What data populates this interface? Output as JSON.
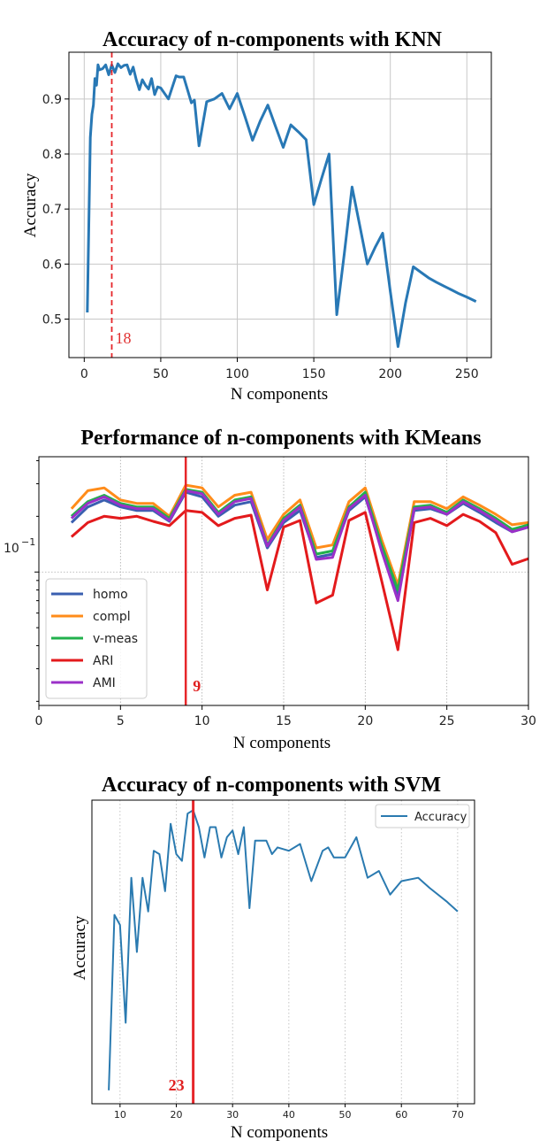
{
  "colors": {
    "knn_line": "#2878b5",
    "svm_line": "#2a7ab0",
    "marker_red": "#e6262a",
    "homo": "#3a5fb0",
    "compl": "#ff8c1a",
    "v-meas": "#22b14c",
    "ARI": "#e31a1c",
    "AMI": "#9b30c8"
  },
  "chart_data": [
    {
      "type": "line",
      "title": "Accuracy of n-components with KNN",
      "xlabel": "N components",
      "ylabel": "Accuracy",
      "xlim": [
        -10,
        266
      ],
      "ylim": [
        0.43,
        0.985
      ],
      "xticks": [
        0,
        50,
        100,
        150,
        200,
        250
      ],
      "yticks": [
        0.5,
        0.6,
        0.7,
        0.8,
        0.9
      ],
      "ytick_labels": [
        "0.5",
        "0.6",
        "0.7",
        "0.8",
        "0.9"
      ],
      "grid": true,
      "marker_x": 18,
      "marker_label": "18",
      "series": [
        {
          "x": [
            2,
            4,
            5,
            6,
            7,
            8,
            9,
            10,
            12,
            14,
            16,
            18,
            20,
            22,
            24,
            26,
            28,
            30,
            32,
            34,
            36,
            38,
            40,
            42,
            44,
            46,
            48,
            50,
            55,
            60,
            62,
            65,
            70,
            72,
            75,
            80,
            85,
            90,
            95,
            100,
            105,
            110,
            115,
            120,
            125,
            130,
            135,
            140,
            145,
            150,
            155,
            160,
            165,
            170,
            175,
            180,
            185,
            190,
            195,
            200,
            205,
            210,
            215,
            220,
            225,
            230,
            235,
            240,
            245,
            250,
            256
          ],
          "y": [
            0.512,
            0.83,
            0.872,
            0.889,
            0.937,
            0.925,
            0.962,
            0.953,
            0.955,
            0.962,
            0.944,
            0.962,
            0.948,
            0.964,
            0.957,
            0.961,
            0.962,
            0.945,
            0.958,
            0.935,
            0.917,
            0.935,
            0.925,
            0.918,
            0.937,
            0.908,
            0.922,
            0.92,
            0.9,
            0.942,
            0.94,
            0.94,
            0.893,
            0.898,
            0.815,
            0.895,
            0.9,
            0.91,
            0.882,
            0.91,
            0.868,
            0.825,
            0.86,
            0.889,
            0.85,
            0.812,
            0.853,
            0.84,
            0.826,
            0.708,
            0.755,
            0.8,
            0.508,
            0.62,
            0.74,
            0.67,
            0.6,
            0.63,
            0.656,
            0.55,
            0.45,
            0.53,
            0.595,
            0.585,
            0.575,
            0.567,
            0.56,
            0.553,
            0.546,
            0.54,
            0.532
          ]
        }
      ]
    },
    {
      "type": "line",
      "title": "Performance of n-components with KMeans",
      "xlabel": "N components",
      "ylabel": "",
      "ylog": true,
      "xlim": [
        0,
        30
      ],
      "ylim": [
        0.019,
        0.42
      ],
      "xticks": [
        0,
        5,
        10,
        15,
        20,
        25,
        30
      ],
      "ytick_label": "10",
      "ytick_exponent": "−1",
      "grid": true,
      "legend_position": "lower-left",
      "marker_x": 9,
      "marker_label": "9",
      "x": [
        2,
        3,
        4,
        5,
        6,
        7,
        8,
        9,
        10,
        11,
        12,
        13,
        14,
        15,
        16,
        17,
        18,
        19,
        20,
        21,
        22,
        23,
        24,
        25,
        26,
        27,
        28,
        29,
        30
      ],
      "series": [
        {
          "name": "homo",
          "values": [
            0.185,
            0.225,
            0.245,
            0.225,
            0.215,
            0.215,
            0.188,
            0.27,
            0.255,
            0.2,
            0.23,
            0.24,
            0.135,
            0.185,
            0.215,
            0.12,
            0.125,
            0.215,
            0.255,
            0.135,
            0.075,
            0.215,
            0.22,
            0.205,
            0.235,
            0.21,
            0.185,
            0.165,
            0.175
          ]
        },
        {
          "name": "compl",
          "values": [
            0.22,
            0.275,
            0.285,
            0.245,
            0.235,
            0.235,
            0.2,
            0.295,
            0.285,
            0.225,
            0.26,
            0.27,
            0.15,
            0.205,
            0.245,
            0.135,
            0.14,
            0.24,
            0.285,
            0.15,
            0.085,
            0.24,
            0.24,
            0.22,
            0.255,
            0.23,
            0.205,
            0.18,
            0.185
          ]
        },
        {
          "name": "v-meas",
          "values": [
            0.2,
            0.24,
            0.26,
            0.235,
            0.225,
            0.225,
            0.195,
            0.28,
            0.27,
            0.21,
            0.245,
            0.255,
            0.14,
            0.195,
            0.23,
            0.125,
            0.13,
            0.225,
            0.27,
            0.14,
            0.08,
            0.225,
            0.23,
            0.21,
            0.245,
            0.22,
            0.195,
            0.17,
            0.18
          ]
        },
        {
          "name": "ARI",
          "values": [
            0.155,
            0.185,
            0.2,
            0.195,
            0.2,
            0.188,
            0.178,
            0.215,
            0.21,
            0.178,
            0.195,
            0.203,
            0.08,
            0.175,
            0.19,
            0.068,
            0.075,
            0.19,
            0.21,
            0.09,
            0.038,
            0.185,
            0.195,
            0.178,
            0.205,
            0.188,
            0.163,
            0.11,
            0.118
          ]
        },
        {
          "name": "AMI",
          "values": [
            0.195,
            0.235,
            0.255,
            0.23,
            0.22,
            0.22,
            0.19,
            0.275,
            0.265,
            0.205,
            0.24,
            0.25,
            0.138,
            0.19,
            0.225,
            0.117,
            0.12,
            0.22,
            0.26,
            0.13,
            0.07,
            0.22,
            0.225,
            0.205,
            0.24,
            0.215,
            0.19,
            0.165,
            0.175
          ]
        }
      ]
    },
    {
      "type": "line",
      "title": "Accuracy of n-components with SVM",
      "xlabel": "N components",
      "ylabel": "Accuracy",
      "xlim": [
        5,
        73
      ],
      "ylim": [
        0.1,
        1.0
      ],
      "xticks": [
        10,
        20,
        30,
        40,
        50,
        60,
        70
      ],
      "grid": true,
      "grid_style": "dotted",
      "legend_position": "top-right",
      "marker_x": 23,
      "marker_label": "23",
      "series": [
        {
          "name": "Accuracy",
          "x": [
            8,
            9,
            10,
            11,
            12,
            13,
            14,
            15,
            16,
            17,
            18,
            19,
            20,
            21,
            22,
            23,
            24,
            25,
            26,
            27,
            28,
            29,
            30,
            31,
            32,
            33,
            34,
            35,
            36,
            37,
            38,
            40,
            42,
            44,
            46,
            47,
            48,
            50,
            52,
            54,
            56,
            58,
            60,
            63,
            65,
            68,
            70
          ],
          "y": [
            0.14,
            0.66,
            0.63,
            0.34,
            0.77,
            0.55,
            0.77,
            0.67,
            0.85,
            0.84,
            0.73,
            0.93,
            0.84,
            0.82,
            0.96,
            0.97,
            0.92,
            0.83,
            0.92,
            0.92,
            0.83,
            0.89,
            0.91,
            0.84,
            0.92,
            0.68,
            0.88,
            0.88,
            0.88,
            0.84,
            0.86,
            0.85,
            0.87,
            0.76,
            0.85,
            0.86,
            0.83,
            0.83,
            0.89,
            0.77,
            0.79,
            0.72,
            0.76,
            0.77,
            0.74,
            0.7,
            0.67
          ]
        }
      ]
    }
  ]
}
